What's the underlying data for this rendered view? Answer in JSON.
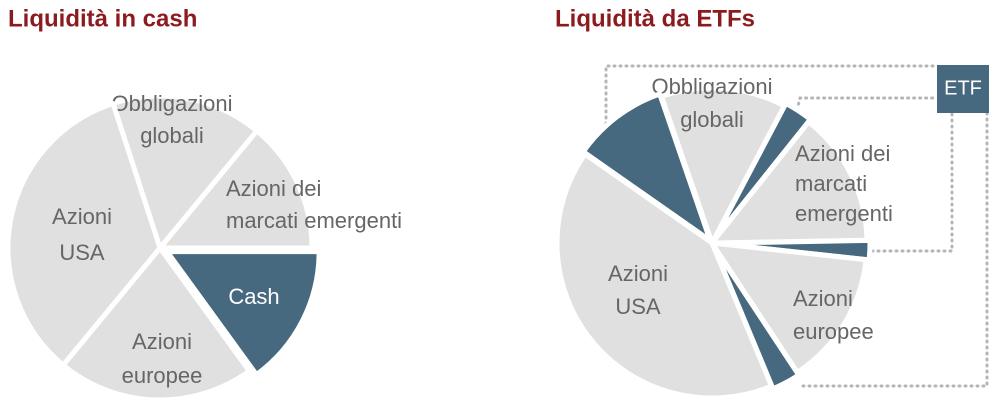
{
  "chart_data": [
    {
      "type": "pie",
      "title": "Liquidità in cash",
      "labels": [
        [
          "Obbligazioni",
          "globali"
        ],
        [
          "Azioni dei",
          "marcati emergenti"
        ],
        [
          "Cash"
        ],
        [
          "Azioni",
          "europee"
        ],
        [
          "Azioni",
          "USA"
        ]
      ],
      "values": [
        16,
        14,
        15,
        21,
        34
      ],
      "colors": [
        "#e0e0e0",
        "#e0e0e0",
        "#46697f",
        "#e0e0e0",
        "#e0e0e0"
      ]
    },
    {
      "type": "pie",
      "title": "Liquidità da ETFs",
      "labels": [
        [
          "Obbligazioni",
          "globali"
        ],
        null,
        [
          "Azioni dei",
          "marcati",
          "emergenti"
        ],
        null,
        [
          "Azioni",
          "europee"
        ],
        null,
        [
          "Azioni",
          "USA"
        ],
        null
      ],
      "values": [
        13,
        3,
        14,
        2,
        14,
        3,
        41,
        10
      ],
      "colors": [
        "#e0e0e0",
        "#46697f",
        "#e0e0e0",
        "#46697f",
        "#e0e0e0",
        "#46697f",
        "#e0e0e0",
        "#46697f"
      ],
      "annotation": "ETF"
    }
  ]
}
